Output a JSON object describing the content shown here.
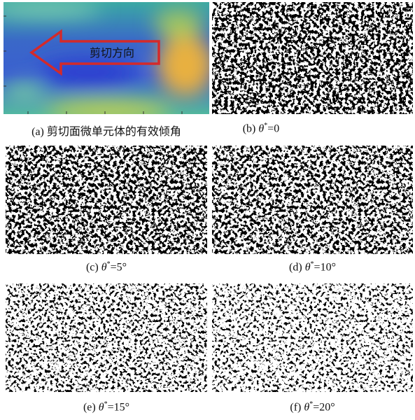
{
  "panels": [
    {
      "caption": {
        "label": "(a)",
        "text": "剪切面微单元体的有效倾角"
      },
      "annotation": "剪切方向"
    },
    {
      "caption": {
        "label": "(b)",
        "symbol": "θ",
        "sup": "*",
        "value": "=0"
      }
    },
    {
      "caption": {
        "label": "(c)",
        "symbol": "θ",
        "sup": "*",
        "value": "=5°"
      }
    },
    {
      "caption": {
        "label": "(d)",
        "symbol": "θ",
        "sup": "*",
        "value": "=10°"
      }
    },
    {
      "caption": {
        "label": "(e)",
        "symbol": "θ",
        "sup": "*",
        "value": "=15°"
      }
    },
    {
      "caption": {
        "label": "(f)",
        "symbol": "θ",
        "sup": "*",
        "value": "=20°"
      }
    }
  ]
}
